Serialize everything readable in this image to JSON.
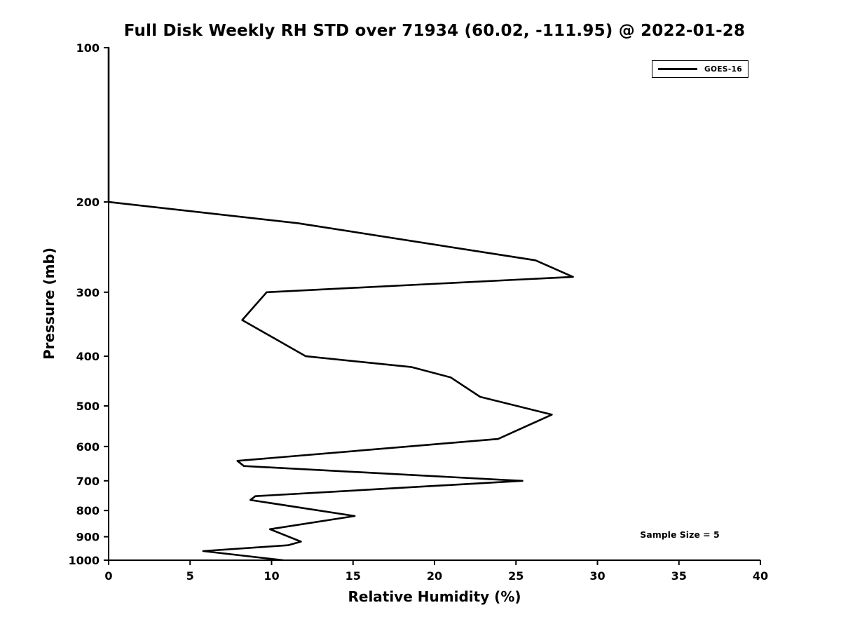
{
  "page": {
    "background": "#ffffff",
    "foreground": "#000000"
  },
  "title": "Full Disk Weekly RH STD over 71934 (60.02, -111.95) @ 2022-01-28",
  "legend": {
    "label": "GOES-16"
  },
  "annotation": {
    "sample_size": "Sample Size = 5"
  },
  "chart_data": {
    "type": "line",
    "title": "Full Disk Weekly RH STD over 71934 (60.02, -111.95) @ 2022-01-28",
    "xlabel": "Relative Humidity (%)",
    "ylabel": "Pressure (mb)",
    "xlim": [
      0,
      40
    ],
    "ylim": [
      100,
      1000
    ],
    "y_scale": "log",
    "y_inverted": true,
    "grid": false,
    "legend_position": "top-right",
    "x_ticks": [
      0,
      5,
      10,
      15,
      20,
      25,
      30,
      35,
      40
    ],
    "y_ticks": [
      100,
      200,
      300,
      400,
      500,
      600,
      700,
      800,
      900,
      1000
    ],
    "point_format": "[rh_percent, pressure_mb]",
    "series": [
      {
        "name": "GOES-16",
        "color": "#000000",
        "points": [
          [
            0,
            100
          ],
          [
            0,
            200
          ],
          [
            11.6,
            220
          ],
          [
            26.2,
            260
          ],
          [
            28.5,
            280
          ],
          [
            9.7,
            300
          ],
          [
            8.2,
            340
          ],
          [
            12.1,
            400
          ],
          [
            18.6,
            420
          ],
          [
            21.0,
            440
          ],
          [
            22.8,
            480
          ],
          [
            27.2,
            520
          ],
          [
            23.9,
            580
          ],
          [
            7.9,
            640
          ],
          [
            8.3,
            655
          ],
          [
            24.2,
            697
          ],
          [
            25.4,
            700
          ],
          [
            9.0,
            750
          ],
          [
            8.7,
            763
          ],
          [
            15.1,
            820
          ],
          [
            9.9,
            870
          ],
          [
            11.8,
            920
          ],
          [
            11.0,
            935
          ],
          [
            5.8,
            960
          ],
          [
            10.7,
            1000
          ]
        ]
      }
    ],
    "annotations": [
      "Sample Size = 5"
    ]
  }
}
